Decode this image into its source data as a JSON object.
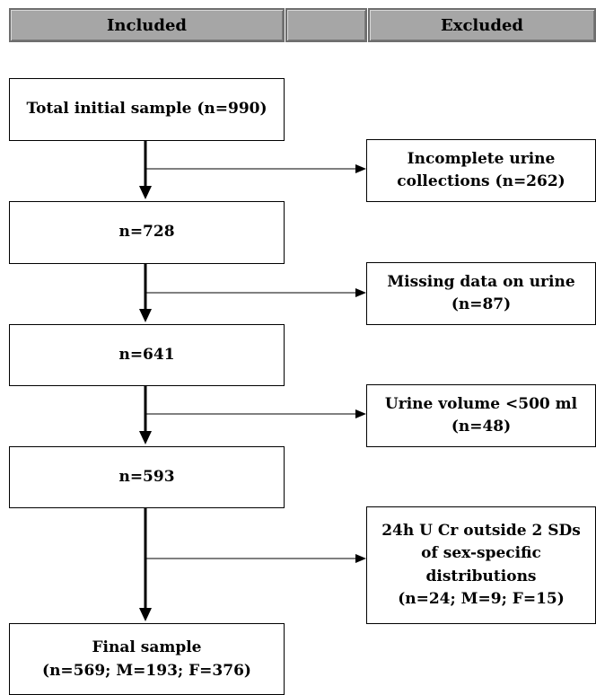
{
  "header": {
    "included": "Included",
    "middle": "",
    "excluded": "Excluded"
  },
  "included": [
    {
      "line1": "Total initial sample (n=990)",
      "line2": ""
    },
    {
      "line1": "n=728",
      "line2": ""
    },
    {
      "line1": "n=641",
      "line2": ""
    },
    {
      "line1": "n=593",
      "line2": ""
    },
    {
      "line1": "Final sample",
      "line2": "(n=569; M=193; F=376)"
    }
  ],
  "excluded": [
    {
      "lines": [
        "Incomplete urine",
        "collections (n=262)"
      ]
    },
    {
      "lines": [
        "Missing data on urine",
        "(n=87)"
      ]
    },
    {
      "lines": [
        "Urine volume <500 ml",
        "(n=48)"
      ]
    },
    {
      "lines": [
        "24h U Cr outside 2 SDs",
        "of sex-specific",
        "distributions",
        "(n=24; M=9; F=15)"
      ]
    }
  ]
}
